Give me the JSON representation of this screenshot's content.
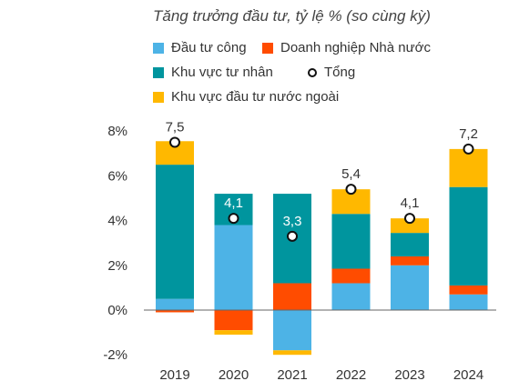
{
  "colors": {
    "public": "#4DB3E6",
    "soe": "#FF4C00",
    "private": "#00959E",
    "fdi": "#FFB800",
    "total_marker_stroke": "#111111",
    "axis": "#666666"
  },
  "chart_data": {
    "type": "bar",
    "stacked": true,
    "title": "Tăng trưởng đầu tư, tỷ lệ % (so cùng kỳ)",
    "xlabel": "",
    "ylabel": "",
    "categories": [
      "2019",
      "2020",
      "2021",
      "2022",
      "2023",
      "2024"
    ],
    "ylim": [
      -2,
      8
    ],
    "yticks": [
      -2,
      0,
      2,
      4,
      6,
      8
    ],
    "ytick_labels": [
      "-2%",
      "0%",
      "2%",
      "4%",
      "6%",
      "8%"
    ],
    "grid": false,
    "legend_position": "top",
    "series": [
      {
        "name": "Đầu tư công",
        "key": "public",
        "values": [
          0.5,
          3.8,
          -1.8,
          1.2,
          2.0,
          0.7
        ]
      },
      {
        "name": "Doanh nghiệp Nhà nước",
        "key": "soe",
        "values": [
          -0.1,
          -0.9,
          1.2,
          0.65,
          0.4,
          0.4
        ]
      },
      {
        "name": "Khu vực tư nhân",
        "key": "private",
        "values": [
          6.0,
          1.4,
          4.0,
          2.45,
          1.05,
          4.4
        ]
      },
      {
        "name": "Khu vực đầu tư nước ngoài",
        "key": "fdi",
        "values": [
          1.05,
          -0.2,
          -0.2,
          1.1,
          0.65,
          1.7
        ]
      }
    ],
    "total": {
      "name": "Tổng",
      "values": [
        7.5,
        4.1,
        3.3,
        5.4,
        4.1,
        7.2
      ],
      "labels": [
        "7,5",
        "4,1",
        "3,3",
        "5,4",
        "4,1",
        "7,2"
      ]
    }
  }
}
